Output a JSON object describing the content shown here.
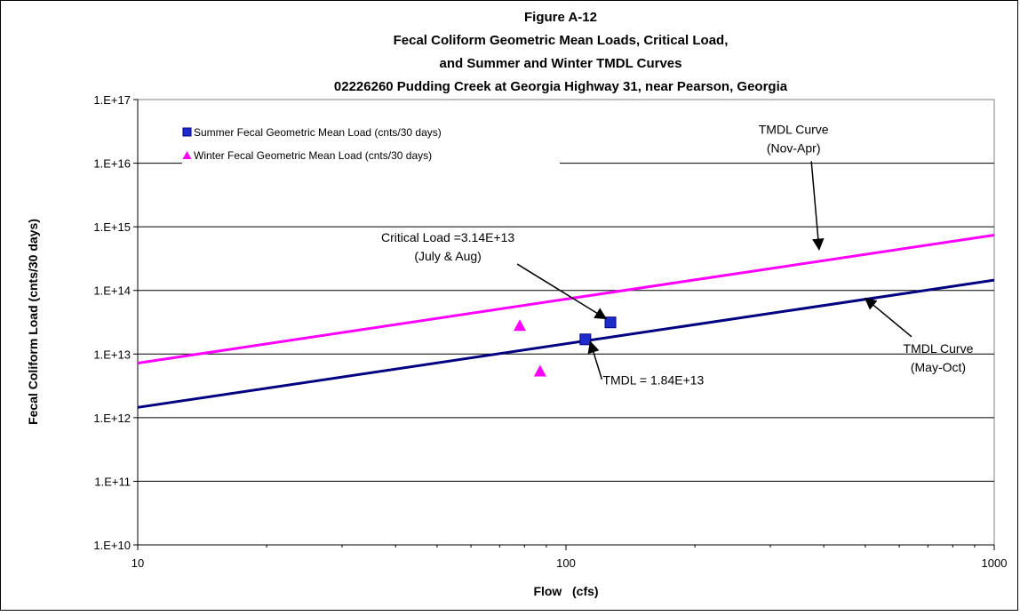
{
  "chart_data": {
    "type": "scatter",
    "title_lines": [
      "Figure A-12",
      "Fecal Coliform Geometric Mean Loads,  Critical Load,",
      "and Summer and Winter TMDL Curves",
      "02226260 Pudding Creek at Georgia Highway 31, near Pearson, Georgia"
    ],
    "xlabel": "Flow   (cfs)",
    "ylabel": "Fecal Coliform Load  (cnts/30 days)",
    "x_scale": "log",
    "y_scale": "log",
    "xlim": [
      10,
      1000
    ],
    "ylim": [
      10000000000.0,
      1e+17
    ],
    "x_ticks": [
      {
        "value": 10,
        "label": "10"
      },
      {
        "value": 100,
        "label": "100"
      },
      {
        "value": 1000,
        "label": "1000"
      }
    ],
    "y_ticks": [
      {
        "value": 10000000000.0,
        "label": "1.E+10"
      },
      {
        "value": 100000000000.0,
        "label": "1.E+11"
      },
      {
        "value": 1000000000000.0,
        "label": "1.E+12"
      },
      {
        "value": 10000000000000.0,
        "label": "1.E+13"
      },
      {
        "value": 100000000000000.0,
        "label": "1.E+14"
      },
      {
        "value": 1000000000000000.0,
        "label": "1.E+15"
      },
      {
        "value": 1e+16,
        "label": "1.E+16"
      },
      {
        "value": 1e+17,
        "label": "1.E+17"
      }
    ],
    "grid": "horizontal",
    "legend_position": "top-left",
    "series": [
      {
        "name": "Summer Fecal Geometric Mean Load (cnts/30 days)",
        "kind": "scatter",
        "marker": "square",
        "color": "#1f2ccc",
        "points": [
          {
            "x": 111,
            "y": 17000000000000.0
          },
          {
            "x": 127,
            "y": 31400000000000.0
          }
        ]
      },
      {
        "name": "Winter Fecal Geometric Mean Load (cnts/30 days)",
        "kind": "scatter",
        "marker": "triangle",
        "color": "#ff00ff",
        "points": [
          {
            "x": 78,
            "y": 28000000000000.0
          },
          {
            "x": 87,
            "y": 5400000000000.0
          }
        ]
      },
      {
        "kind": "line",
        "color": "#ff00ff",
        "points": [
          {
            "x": 10,
            "y": 7200000000000.0
          },
          {
            "x": 1000,
            "y": 740000000000000.0
          }
        ]
      },
      {
        "kind": "line",
        "color": "#000080",
        "points": [
          {
            "x": 10,
            "y": 1450000000000.0
          },
          {
            "x": 1000,
            "y": 145000000000000.0
          }
        ]
      }
    ],
    "annotations": [
      {
        "lines": [
          "TMDL Curve",
          "(Nov-Apr)"
        ],
        "x": 340,
        "y": 2.9e+16,
        "arrow_to": {
          "x": 390,
          "y": 440000000000000.0
        }
      },
      {
        "lines": [
          "Critical Load =3.14E+13",
          "(July & Aug)"
        ],
        "x": 53,
        "y": 580000000000000.0,
        "arrow_to": {
          "x": 124,
          "y": 36000000000000.0
        }
      },
      {
        "lines": [
          "TMDL = 1.84E+13"
        ],
        "x": 160,
        "y": 3300000000000.0,
        "arrow_to": {
          "x": 114,
          "y": 15500000000000.0
        }
      },
      {
        "lines": [
          "TMDL Curve",
          "(May-Oct)"
        ],
        "x": 740,
        "y": 10500000000000.0,
        "arrow_to": {
          "x": 500,
          "y": 75000000000000.0
        }
      }
    ]
  }
}
